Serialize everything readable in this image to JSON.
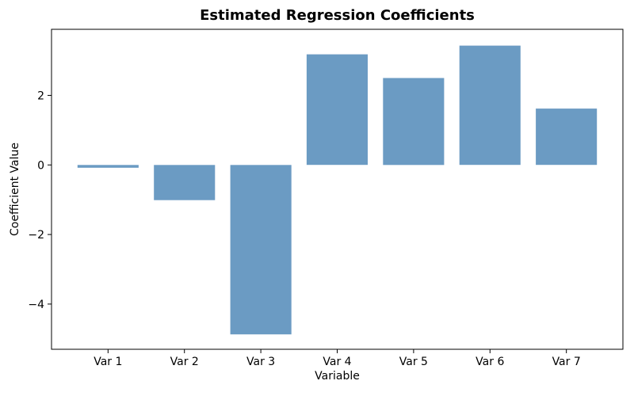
{
  "figure": {
    "background": "#ffffff"
  },
  "chart_data": {
    "type": "bar",
    "title": "Estimated Regression Coefficients",
    "xlabel": "Variable",
    "ylabel": "Coefficient Value",
    "categories": [
      "Var 1",
      "Var 2",
      "Var 3",
      "Var 4",
      "Var 5",
      "Var 6",
      "Var 7"
    ],
    "values": [
      -0.08,
      -1.01,
      -4.87,
      3.18,
      2.5,
      3.43,
      1.62
    ],
    "bar_color": "#6B9BC3",
    "bar_width": 0.8,
    "xlim": [
      -0.74,
      6.74
    ],
    "ylim": [
      -5.3,
      3.9
    ],
    "yticks": [
      {
        "value": 2,
        "label": "2"
      },
      {
        "value": 0,
        "label": "0"
      },
      {
        "value": -2,
        "label": "−2"
      },
      {
        "value": -4,
        "label": "−4"
      }
    ],
    "grid": false,
    "legend": "none",
    "axis_color": "#000000",
    "text_color": "#000000",
    "tick_length": 5
  }
}
